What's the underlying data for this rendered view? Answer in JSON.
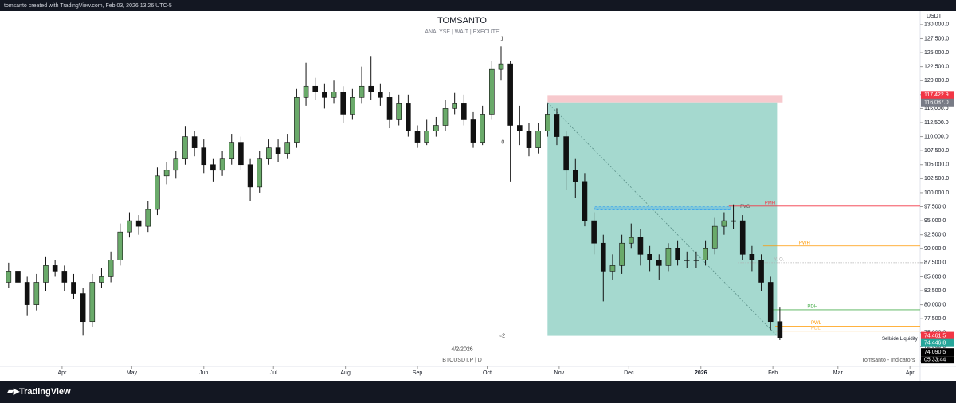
{
  "header": {
    "caption": "tomsanto created with TradingView.com, Feb 03, 2026 13:26 UTC-5"
  },
  "footer": {
    "brand": "TradingView"
  },
  "chart_data": {
    "type": "candlestick",
    "title": "TOMSANTO",
    "subtitle": "ANALYSE  |  WAIT  |  EXECUTE",
    "symbol": "BTCUSDT.P | D",
    "indicator": "Tomsanto - Indicators",
    "currency": "USDT",
    "up_color": "#6aaa6a",
    "down_color": "#111111",
    "ylim": [
      69000,
      132400
    ],
    "xlim": [
      0,
      98.6
    ],
    "xticks": [
      {
        "value": 6.25,
        "label": "Apr"
      },
      {
        "value": 13.75,
        "label": "May"
      },
      {
        "value": 21.5,
        "label": "Jun"
      },
      {
        "value": 29,
        "label": "Jul"
      },
      {
        "value": 36.75,
        "label": "Aug"
      },
      {
        "value": 44.5,
        "label": "Sep"
      },
      {
        "value": 52,
        "label": "Oct"
      },
      {
        "value": 59.75,
        "label": "Nov"
      },
      {
        "value": 67.25,
        "label": "Dec"
      },
      {
        "value": 75,
        "label": "2026"
      },
      {
        "value": 82.75,
        "label": "Feb"
      },
      {
        "value": 89.75,
        "label": "Mar"
      },
      {
        "value": 97.5,
        "label": "Apr"
      }
    ],
    "yticks": [
      {
        "value": 70000,
        "label": "70,000.0"
      },
      {
        "value": 72500,
        "label": "72,500.0"
      },
      {
        "value": 75000,
        "label": "75,000.0"
      },
      {
        "value": 77500,
        "label": "77,500.0"
      },
      {
        "value": 80000,
        "label": "80,000.0"
      },
      {
        "value": 82500,
        "label": "82,500.0"
      },
      {
        "value": 85000,
        "label": "85,000.0"
      },
      {
        "value": 87500,
        "label": "87,500.0"
      },
      {
        "value": 90000,
        "label": "90,000.0"
      },
      {
        "value": 92500,
        "label": "92,500.0"
      },
      {
        "value": 95000,
        "label": "95,000.0"
      },
      {
        "value": 97500,
        "label": "97,500.0"
      },
      {
        "value": 100000,
        "label": "100,000.0"
      },
      {
        "value": 102500,
        "label": "102,500.0"
      },
      {
        "value": 105000,
        "label": "105,000.0"
      },
      {
        "value": 107500,
        "label": "107,500.0"
      },
      {
        "value": 110000,
        "label": "110,000.0"
      },
      {
        "value": 112500,
        "label": "112,500.0"
      },
      {
        "value": 115000,
        "label": "115,000.0"
      },
      {
        "value": 117500,
        "label": "117,500.0"
      },
      {
        "value": 120000,
        "label": "120,000.0"
      },
      {
        "value": 122500,
        "label": "122,500.0"
      },
      {
        "value": 125000,
        "label": "125,000.0"
      },
      {
        "value": 127500,
        "label": "127,500.0"
      },
      {
        "value": 130000,
        "label": "130,000.0"
      }
    ],
    "open": [
      84000,
      86000,
      84000,
      80000,
      84000,
      87000,
      86000,
      84000,
      82000,
      77000,
      84000,
      85000,
      88000,
      93000,
      95000,
      94000,
      97000,
      103000,
      104000,
      106000,
      110000,
      108000,
      105000,
      104000,
      106000,
      109000,
      105000,
      101000,
      106000,
      108000,
      107000,
      109000,
      117000,
      119000,
      118000,
      117000,
      118000,
      114000,
      117000,
      119000,
      118000,
      117000,
      113000,
      116000,
      111000,
      109000,
      111000,
      112000,
      115000,
      116000,
      113000,
      109000,
      114000,
      122000,
      123000,
      112000,
      111000,
      108000,
      111000,
      114000,
      110000,
      104000,
      102000,
      95000,
      91000,
      86000,
      87000,
      91000,
      92000,
      89000,
      88000,
      87000,
      90000,
      88000,
      88000,
      88000,
      90000,
      94000,
      95000,
      95000,
      89000,
      88000,
      84000,
      77000
    ],
    "high": [
      87500,
      87000,
      85000,
      85500,
      88500,
      88000,
      87000,
      85500,
      83000,
      85500,
      86500,
      89500,
      94500,
      96500,
      96000,
      98500,
      104500,
      105500,
      107500,
      111900,
      111000,
      109500,
      106000,
      107500,
      110500,
      110000,
      106000,
      107500,
      109500,
      109500,
      110500,
      118500,
      123200,
      120500,
      119500,
      120000,
      119000,
      118500,
      122500,
      124400,
      119500,
      118000,
      117500,
      117500,
      112000,
      113000,
      113500,
      116500,
      117800,
      117500,
      114500,
      115500,
      123500,
      126100,
      123500,
      115500,
      112500,
      112500,
      116000,
      115000,
      111000,
      106000,
      103500,
      96500,
      92500,
      89000,
      92500,
      94500,
      93500,
      90500,
      89000,
      91000,
      91500,
      89500,
      89500,
      91500,
      95500,
      96500,
      97900,
      96000,
      90500,
      89000,
      85000,
      79500
    ],
    "low": [
      83000,
      82500,
      78000,
      79000,
      82500,
      85000,
      82500,
      81000,
      74500,
      76000,
      83000,
      84000,
      87000,
      92000,
      92500,
      93000,
      96000,
      101500,
      102500,
      105000,
      106500,
      103500,
      102000,
      103000,
      105000,
      104000,
      98500,
      100000,
      105000,
      105500,
      106000,
      108000,
      115500,
      116500,
      115000,
      116000,
      112500,
      113000,
      116000,
      116500,
      115500,
      111500,
      112000,
      110000,
      108000,
      108500,
      110000,
      111000,
      114000,
      112000,
      108000,
      108500,
      113000,
      120000,
      102000,
      108500,
      106500,
      107000,
      110000,
      108500,
      100500,
      99000,
      94000,
      89000,
      80600,
      84500,
      85500,
      90000,
      87000,
      86000,
      84500,
      86000,
      87000,
      86500,
      86500,
      87000,
      89000,
      92500,
      93500,
      88000,
      86000,
      82500,
      75500,
      73700
    ],
    "close": [
      86000,
      84000,
      80000,
      84000,
      87000,
      86000,
      84000,
      82000,
      77000,
      84000,
      85000,
      88000,
      93000,
      95000,
      94000,
      97000,
      103000,
      104000,
      106000,
      110000,
      108000,
      105000,
      104000,
      106000,
      109000,
      105000,
      101000,
      106000,
      108000,
      107000,
      109000,
      117000,
      119000,
      118000,
      117000,
      118000,
      114000,
      117000,
      119000,
      118000,
      117000,
      113000,
      116000,
      111000,
      109000,
      111000,
      112000,
      115000,
      116000,
      113000,
      109000,
      114000,
      122000,
      123000,
      112000,
      111000,
      108000,
      111000,
      114000,
      110000,
      104000,
      102000,
      95000,
      91000,
      86000,
      87000,
      91000,
      92000,
      89000,
      88000,
      87000,
      90000,
      88000,
      88000,
      88000,
      90000,
      94000,
      95000,
      95000,
      89000,
      88000,
      84000,
      77000,
      74090.5
    ],
    "zones": [
      {
        "x": [
          58.5,
          83.8
        ],
        "y": [
          117422.9,
          116087
        ],
        "color": "#f7c9cd"
      },
      {
        "x": [
          58.5,
          83.2
        ],
        "y": [
          116087,
          74461.5
        ],
        "color": "#a5d9cf"
      }
    ],
    "levels": [
      {
        "name": "PMH",
        "value": 97600,
        "start": 78,
        "color": "#f23645"
      },
      {
        "name": "PWH",
        "value": 90500,
        "start": 81.7,
        "color": "#ff9800"
      },
      {
        "name": "PDH",
        "value": 79100,
        "start": 82.6,
        "color": "#4caf50"
      },
      {
        "name": "PWL",
        "value": 76200,
        "start": 83,
        "color": "#ff9800"
      },
      {
        "name": "PDL",
        "value": 75300,
        "start": 83,
        "color": "#ffb74d"
      },
      {
        "name": "Y. O.",
        "value": 87500,
        "start": 79,
        "color": "#b0b0b0"
      },
      {
        "name": "Sellside Liquidity",
        "value": 74600,
        "start": 0,
        "color": "#f23645"
      }
    ],
    "fvg": {
      "label": "FVG",
      "x": [
        63.6,
        78.2
      ],
      "y": [
        97500,
        96900
      ]
    },
    "annotations": [
      {
        "text": "1",
        "x": 53.6,
        "y": 127500
      },
      {
        "text": "0",
        "x": 53.7,
        "y": 109000
      },
      {
        "text": "≈2",
        "x": 53.6,
        "y": 74461.5
      },
      {
        "text": "4/2/2026",
        "x": 49.3,
        "y": 72000
      }
    ],
    "price_tags": [
      {
        "value": 117422.9,
        "label": "117,422.9",
        "color": "#f23645"
      },
      {
        "value": 116087,
        "label": "116,087.0",
        "color": "#787b86"
      },
      {
        "value": 74461.5,
        "label": "74,461.5",
        "color": "#f23645"
      },
      {
        "value": 74446.8,
        "label": "74,446.8",
        "color": "#26a69a"
      },
      {
        "value": 74090.5,
        "label": "74,090.5",
        "color": "#000000"
      }
    ],
    "countdown": "05:33:44"
  }
}
